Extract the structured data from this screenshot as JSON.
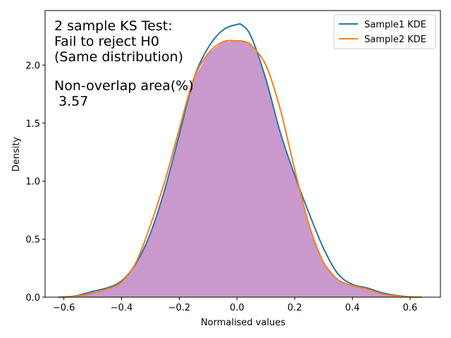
{
  "chart_data": {
    "type": "area",
    "xlabel": "Normalised values",
    "ylabel": "Density",
    "xlim": [
      -0.665,
      0.705
    ],
    "ylim": [
      0,
      2.47
    ],
    "xticks": [
      -0.6,
      -0.4,
      -0.2,
      0.0,
      0.2,
      0.4,
      0.6
    ],
    "xtick_labels": [
      "−0.6",
      "−0.4",
      "−0.2",
      "0.0",
      "0.2",
      "0.4",
      "0.6"
    ],
    "yticks": [
      0.0,
      0.5,
      1.0,
      1.5,
      2.0
    ],
    "ytick_labels": [
      "0.0",
      "0.5",
      "1.0",
      "1.5",
      "2.0"
    ],
    "grid": false,
    "legend_position": "top-right",
    "annotation_lines": [
      "2 sample KS Test:",
      "Fail to reject H0",
      "(Same distribution)",
      "",
      "Non-overlap area(%)",
      " 3.57"
    ],
    "overlap_fill_color": "#c999cd",
    "series": [
      {
        "name": "Sample1 KDE",
        "color": "#1f77b4",
        "x": [
          -0.62,
          -0.58,
          -0.55,
          -0.5,
          -0.45,
          -0.4,
          -0.35,
          -0.3,
          -0.25,
          -0.2,
          -0.15,
          -0.1,
          -0.05,
          0.0,
          0.02,
          0.05,
          0.1,
          0.15,
          0.2,
          0.25,
          0.3,
          0.35,
          0.4,
          0.45,
          0.5,
          0.55,
          0.6,
          0.62
        ],
        "y": [
          0.0,
          0.005,
          0.015,
          0.05,
          0.08,
          0.14,
          0.29,
          0.55,
          0.93,
          1.4,
          1.88,
          2.15,
          2.3,
          2.35,
          2.34,
          2.24,
          1.88,
          1.42,
          1.05,
          0.72,
          0.42,
          0.2,
          0.11,
          0.08,
          0.04,
          0.015,
          0.003,
          0.0
        ]
      },
      {
        "name": "Sample2 KDE",
        "color": "#ff7f0e",
        "x": [
          -0.62,
          -0.58,
          -0.55,
          -0.5,
          -0.45,
          -0.4,
          -0.35,
          -0.3,
          -0.25,
          -0.2,
          -0.15,
          -0.1,
          -0.05,
          0.0,
          0.03,
          0.05,
          0.1,
          0.15,
          0.2,
          0.25,
          0.3,
          0.35,
          0.4,
          0.45,
          0.5,
          0.55,
          0.6,
          0.64
        ],
        "y": [
          0.0,
          0.003,
          0.01,
          0.035,
          0.07,
          0.13,
          0.3,
          0.62,
          1.0,
          1.45,
          1.88,
          2.1,
          2.2,
          2.21,
          2.2,
          2.17,
          2.0,
          1.62,
          1.1,
          0.62,
          0.3,
          0.15,
          0.1,
          0.07,
          0.03,
          0.01,
          0.002,
          0.0
        ]
      }
    ]
  }
}
